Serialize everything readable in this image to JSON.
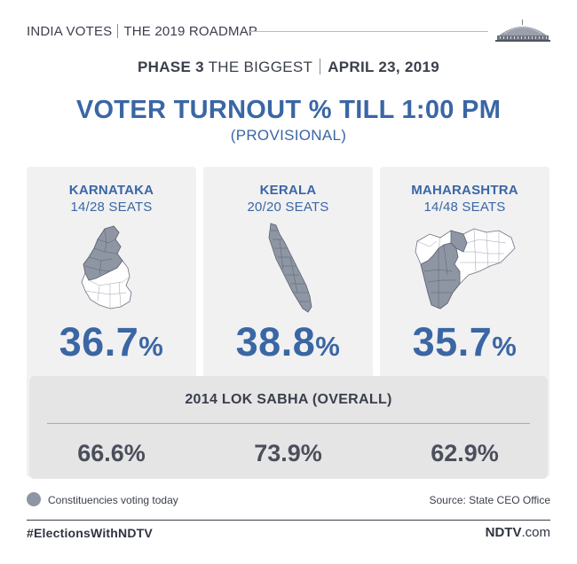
{
  "header": {
    "brand_left": "INDIA VOTES",
    "brand_right": "THE 2019 ROADMAP",
    "logo_icon": "parliament-icon"
  },
  "phase": {
    "phase_bold": "PHASE 3",
    "phase_rest": " THE BIGGEST",
    "date": "APRIL 23, 2019"
  },
  "title": "VOTER TURNOUT % TILL 1:00 PM",
  "subtitle": "(PROVISIONAL)",
  "states": [
    {
      "name": "KARNATAKA",
      "seats": "14/28 SEATS",
      "turnout": "36.7",
      "pct": "%",
      "map_icon": "karnataka-map-icon"
    },
    {
      "name": "KERALA",
      "seats": "20/20 SEATS",
      "turnout": "38.8",
      "pct": "%",
      "map_icon": "kerala-map-icon"
    },
    {
      "name": "MAHARASHTRA",
      "seats": "14/48 SEATS",
      "turnout": "35.7",
      "pct": "%",
      "map_icon": "maharashtra-map-icon"
    }
  ],
  "overall": {
    "label": "2014 LOK SABHA (OVERALL)",
    "values": [
      "66.6%",
      "73.9%",
      "62.9%"
    ]
  },
  "legend": {
    "text": "Constituencies voting today",
    "dot_color": "#8e96a3"
  },
  "source": "Source: State CEO Office",
  "footer": {
    "hashtag": "#ElectionsWithNDTV",
    "ndtv_brand": "NDTV",
    "ndtv_domain": ".com"
  },
  "colors": {
    "accent": "#3a66a4",
    "text": "#3a3f4b",
    "card_bg": "#f1f1f2",
    "overall_bg": "#e5e5e6"
  }
}
